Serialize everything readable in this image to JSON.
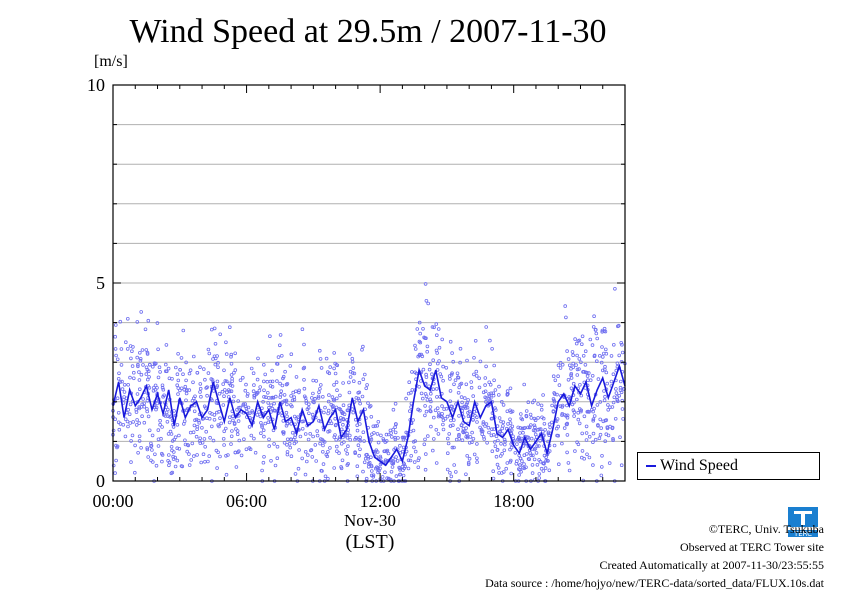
{
  "header": {
    "title": "Wind Speed at 29.5m / 2007-11-30"
  },
  "axes": {
    "y_unit": "[m/s]",
    "date_label": "Nov-30",
    "time_label": "(LST)"
  },
  "legend": {
    "label": "Wind Speed"
  },
  "credits": {
    "copyright": "©TERC, Univ. Tsukuba",
    "observed": "Observed at TERC Tower site",
    "created": "Created Automatically at 2007-11-30/23:55:55",
    "source": "Data source : /home/hojyo/new/TERC-data/sorted_data/FLUX.10s.dat"
  },
  "logo": {
    "text": "TERC"
  },
  "colors": {
    "line": "#1a1adc",
    "points": "#6f6ff0",
    "grid": "#b0b0b0",
    "logo": "#1a7fd0"
  },
  "chart_data": {
    "type": "line",
    "title": "Wind Speed at 29.5m / 2007-11-30",
    "xlabel": "(LST)",
    "ylabel": "[m/s]",
    "xlim": [
      0,
      23
    ],
    "ylim": [
      0,
      10
    ],
    "x_ticks": [
      0,
      6,
      12,
      18
    ],
    "x_tick_labels": [
      "00:00",
      "06:00",
      "12:00",
      "18:00"
    ],
    "y_ticks": [
      0,
      5,
      10
    ],
    "y_tick_labels": [
      "0",
      "5",
      "10"
    ],
    "grid": true,
    "legend_position": "right",
    "series": [
      {
        "name": "Wind Speed",
        "x": [
          0,
          0.25,
          0.5,
          0.75,
          1,
          1.25,
          1.5,
          1.75,
          2,
          2.25,
          2.5,
          2.75,
          3,
          3.25,
          3.5,
          3.75,
          4,
          4.25,
          4.5,
          4.75,
          5,
          5.25,
          5.5,
          5.75,
          6,
          6.25,
          6.5,
          6.75,
          7,
          7.25,
          7.5,
          7.75,
          8,
          8.25,
          8.5,
          8.75,
          9,
          9.25,
          9.5,
          9.75,
          10,
          10.25,
          10.5,
          10.75,
          11,
          11.25,
          11.5,
          11.75,
          12,
          12.25,
          12.5,
          12.75,
          13,
          13.25,
          13.5,
          13.75,
          14,
          14.25,
          14.5,
          14.75,
          15,
          15.25,
          15.5,
          15.75,
          16,
          16.25,
          16.5,
          16.75,
          17,
          17.25,
          17.5,
          17.75,
          18,
          18.25,
          18.5,
          18.75,
          19,
          19.25,
          19.5,
          19.75,
          20,
          20.25,
          20.5,
          20.75,
          21,
          21.25,
          21.5,
          21.75,
          22,
          22.25,
          22.5,
          22.75,
          23
        ],
        "values": [
          1.9,
          2.5,
          1.6,
          2.3,
          1.9,
          2.1,
          2.4,
          1.8,
          2.2,
          1.7,
          2.3,
          1.4,
          2.1,
          1.6,
          1.9,
          2.0,
          1.6,
          1.8,
          2.5,
          2.0,
          1.5,
          2.1,
          1.6,
          1.8,
          1.7,
          1.4,
          2.0,
          1.6,
          1.8,
          1.3,
          2.0,
          1.5,
          1.6,
          1.2,
          1.8,
          1.4,
          1.5,
          1.9,
          1.3,
          1.6,
          1.8,
          1.1,
          1.3,
          2.1,
          1.5,
          1.8,
          1.0,
          0.6,
          0.5,
          0.4,
          0.6,
          0.8,
          0.5,
          1.1,
          2.0,
          2.8,
          2.4,
          2.3,
          2.8,
          2.1,
          2.0,
          1.6,
          2.0,
          1.5,
          1.4,
          2.0,
          1.6,
          1.9,
          2.0,
          1.2,
          1.1,
          1.3,
          0.9,
          0.7,
          1.1,
          0.8,
          1.0,
          1.2,
          0.7,
          1.3,
          2.0,
          2.2,
          1.9,
          2.4,
          2.2,
          2.5,
          1.9,
          2.3,
          2.6,
          2.1,
          2.5,
          2.9,
          2.4
        ]
      }
    ]
  }
}
